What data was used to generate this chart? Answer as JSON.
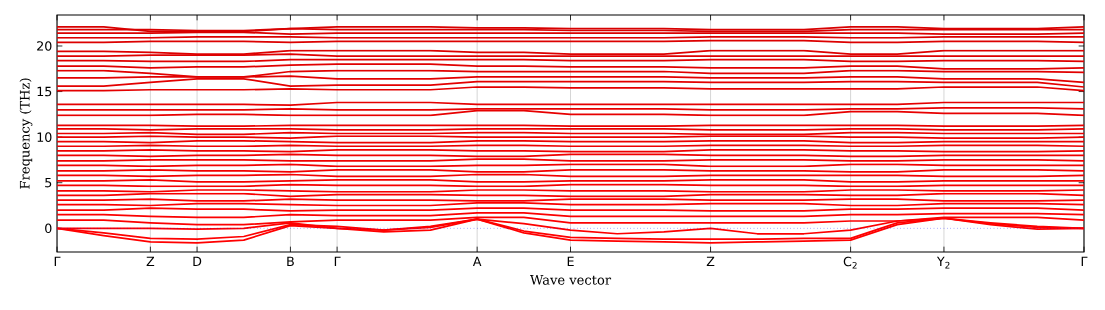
{
  "chart_data": {
    "type": "line",
    "xlabel": "Wave vector",
    "ylabel": "Frequency (THz)",
    "grid": "x",
    "ylim": [
      -2.6,
      23.4
    ],
    "yticks": [
      0,
      5,
      10,
      15,
      20
    ],
    "categories": [
      "Γ",
      null,
      "Z",
      "D",
      null,
      "B",
      "Γ",
      null,
      null,
      "A",
      null,
      "E",
      null,
      null,
      "Z",
      null,
      null,
      "C$_{2}$",
      null,
      "Y$_{2}$",
      null,
      null,
      "Γ"
    ],
    "ref_lines": [
      {
        "axis": "y",
        "value": 0,
        "color": "#0000ff",
        "line_style": "dotted"
      }
    ],
    "series": [
      {
        "color": "#ff0000",
        "values": [
          0,
          -0.8,
          -1.5,
          -1.6,
          -1.3,
          0.3,
          0,
          -0.4,
          -0.2,
          1.0,
          -0.5,
          -1.3,
          -1.4,
          -1.5,
          -1.6,
          -1.5,
          -1.4,
          -1.3,
          0.4,
          1.1,
          0.6,
          0.2,
          0
        ]
      },
      {
        "color": "#fe0000",
        "values": [
          0,
          -0.5,
          -1.1,
          -1.2,
          -0.9,
          0.4,
          0.2,
          -0.2,
          0.1,
          1.0,
          -0.3,
          -1.0,
          -1.1,
          -1.2,
          -1.2,
          -1.2,
          -1.1,
          -1.1,
          0.6,
          1.1,
          0.5,
          0.1,
          0
        ]
      },
      {
        "color": "#fd0000",
        "values": [
          0,
          0,
          0,
          -0.1,
          0,
          0.6,
          0,
          -0.2,
          0.2,
          1.0,
          0.5,
          -0.2,
          -0.6,
          -0.4,
          0,
          -0.6,
          -0.6,
          -0.2,
          0.8,
          1.1,
          0.4,
          -0.1,
          0
        ]
      },
      {
        "color": "#fc0000",
        "values": [
          0.9,
          0.9,
          0.6,
          0.4,
          0.4,
          0.7,
          0.9,
          0.9,
          0.9,
          1.2,
          1.2,
          0.6,
          0.6,
          0.6,
          0.6,
          0.6,
          0.6,
          0.8,
          0.8,
          1.2,
          1.2,
          1.2,
          0.9
        ]
      },
      {
        "color": "#fb0000",
        "values": [
          1.5,
          1.5,
          1.3,
          1.2,
          1.2,
          1.5,
          1.4,
          1.4,
          1.4,
          1.7,
          1.7,
          1.3,
          1.3,
          1.3,
          1.3,
          1.3,
          1.3,
          1.5,
          1.5,
          1.6,
          1.6,
          1.6,
          1.5
        ]
      },
      {
        "color": "#fa0000",
        "values": [
          2.0,
          2.0,
          2.2,
          2.1,
          2.1,
          1.9,
          2.0,
          2.0,
          2.0,
          2.2,
          2.2,
          2.0,
          2.0,
          2.0,
          1.9,
          1.9,
          1.9,
          2.1,
          2.1,
          2.2,
          2.2,
          2.2,
          2.0
        ]
      },
      {
        "color": "#f90000",
        "values": [
          2.6,
          2.6,
          2.5,
          2.7,
          2.7,
          2.6,
          2.5,
          2.5,
          2.5,
          2.8,
          2.8,
          2.6,
          2.6,
          2.6,
          2.7,
          2.7,
          2.7,
          2.5,
          2.5,
          2.7,
          2.7,
          2.7,
          2.6
        ]
      },
      {
        "color": "#f80000",
        "values": [
          3.1,
          3.1,
          3.2,
          3.0,
          3.0,
          3.2,
          3.1,
          3.1,
          3.1,
          3.0,
          3.0,
          3.2,
          3.2,
          3.2,
          3.1,
          3.1,
          3.1,
          3.2,
          3.2,
          3.0,
          3.0,
          3.0,
          3.1
        ]
      },
      {
        "color": "#f70000",
        "values": [
          3.6,
          3.6,
          3.8,
          3.8,
          3.8,
          3.5,
          3.7,
          3.7,
          3.7,
          3.6,
          3.6,
          3.5,
          3.5,
          3.5,
          3.7,
          3.7,
          3.7,
          3.6,
          3.6,
          3.8,
          3.8,
          3.8,
          3.6
        ]
      },
      {
        "color": "#f60000",
        "values": [
          4.1,
          4.1,
          4.0,
          4.2,
          4.2,
          4.1,
          4.0,
          4.0,
          4.0,
          4.2,
          4.2,
          4.1,
          4.1,
          4.1,
          4.0,
          4.0,
          4.0,
          4.2,
          4.2,
          4.1,
          4.1,
          4.1,
          4.2
        ]
      },
      {
        "color": "#f50000",
        "values": [
          4.7,
          4.7,
          4.6,
          4.6,
          4.6,
          4.8,
          4.7,
          4.7,
          4.7,
          4.6,
          4.6,
          4.8,
          4.8,
          4.8,
          4.7,
          4.7,
          4.7,
          4.6,
          4.6,
          4.7,
          4.7,
          4.7,
          4.7
        ]
      },
      {
        "color": "#f40000",
        "values": [
          5.2,
          5.2,
          5.3,
          5.1,
          5.1,
          5.2,
          5.3,
          5.3,
          5.3,
          5.1,
          5.1,
          5.2,
          5.2,
          5.2,
          5.3,
          5.3,
          5.3,
          5.1,
          5.1,
          5.2,
          5.2,
          5.2,
          5.2
        ]
      },
      {
        "color": "#f30000",
        "values": [
          5.8,
          5.8,
          5.7,
          5.8,
          5.8,
          5.9,
          5.7,
          5.7,
          5.7,
          5.9,
          5.9,
          5.7,
          5.7,
          5.7,
          5.8,
          5.8,
          5.8,
          5.8,
          5.8,
          5.7,
          5.7,
          5.7,
          5.8
        ]
      },
      {
        "color": "#f20000",
        "values": [
          6.3,
          6.3,
          6.4,
          6.3,
          6.3,
          6.2,
          6.4,
          6.4,
          6.4,
          6.2,
          6.2,
          6.4,
          6.4,
          6.4,
          6.3,
          6.3,
          6.3,
          6.2,
          6.2,
          6.4,
          6.4,
          6.4,
          6.3
        ]
      },
      {
        "color": "#f10000",
        "values": [
          6.9,
          6.9,
          6.8,
          6.9,
          6.9,
          7.0,
          6.8,
          6.8,
          6.8,
          6.9,
          6.9,
          7.0,
          7.0,
          7.0,
          6.8,
          6.8,
          6.8,
          7.0,
          7.0,
          6.9,
          6.9,
          6.9,
          6.9
        ]
      },
      {
        "color": "#f00000",
        "values": [
          7.4,
          7.4,
          7.5,
          7.5,
          7.5,
          7.4,
          7.4,
          7.4,
          7.4,
          7.6,
          7.6,
          7.4,
          7.4,
          7.4,
          7.5,
          7.5,
          7.5,
          7.4,
          7.4,
          7.5,
          7.5,
          7.5,
          7.4
        ]
      },
      {
        "color": "#ef0000",
        "values": [
          8.0,
          8.0,
          7.9,
          8.0,
          8.0,
          8.1,
          8.0,
          8.0,
          8.0,
          7.9,
          7.9,
          8.1,
          8.1,
          8.1,
          8.0,
          8.0,
          8.0,
          7.9,
          7.9,
          8.0,
          8.0,
          8.0,
          8.0
        ]
      },
      {
        "color": "#ee0000",
        "values": [
          8.5,
          8.5,
          8.6,
          8.5,
          8.5,
          8.4,
          8.6,
          8.6,
          8.6,
          8.5,
          8.5,
          8.4,
          8.4,
          8.4,
          8.6,
          8.6,
          8.6,
          8.5,
          8.5,
          8.4,
          8.4,
          8.4,
          8.5
        ]
      },
      {
        "color": "#ed0000",
        "values": [
          9.0,
          9.0,
          9.1,
          9.0,
          9.0,
          9.1,
          9.0,
          9.0,
          9.0,
          9.1,
          9.1,
          9.0,
          9.0,
          9.0,
          9.1,
          9.1,
          9.1,
          9.0,
          9.0,
          9.1,
          9.1,
          9.1,
          9.0
        ]
      },
      {
        "color": "#ec0000",
        "values": [
          9.5,
          9.5,
          9.4,
          9.6,
          9.6,
          9.5,
          9.4,
          9.4,
          9.4,
          9.6,
          9.6,
          9.5,
          9.5,
          9.5,
          9.6,
          9.6,
          9.6,
          9.4,
          9.4,
          9.5,
          9.5,
          9.5,
          9.5
        ]
      },
      {
        "color": "#eb0000",
        "values": [
          10.0,
          10.0,
          10.1,
          10.0,
          10.0,
          9.9,
          10.1,
          10.1,
          10.1,
          10.0,
          10.0,
          10.0,
          10.0,
          10.0,
          10.1,
          10.1,
          10.1,
          10.0,
          10.0,
          9.9,
          9.9,
          9.9,
          10.0
        ]
      },
      {
        "color": "#ea0000",
        "values": [
          10.4,
          10.4,
          10.5,
          10.3,
          10.3,
          10.5,
          10.4,
          10.4,
          10.4,
          10.5,
          10.5,
          10.4,
          10.4,
          10.4,
          10.3,
          10.3,
          10.3,
          10.5,
          10.5,
          10.4,
          10.4,
          10.4,
          10.4
        ]
      },
      {
        "color": "#e90000",
        "values": [
          10.9,
          10.9,
          10.8,
          10.9,
          10.9,
          10.9,
          10.8,
          10.8,
          10.8,
          10.9,
          10.9,
          10.9,
          10.9,
          10.9,
          10.8,
          10.8,
          10.8,
          10.9,
          10.9,
          10.8,
          10.8,
          10.8,
          10.9
        ]
      },
      {
        "color": "#e80000",
        "values": [
          11.3,
          11.3,
          11.3,
          11.2,
          11.2,
          11.3,
          11.3,
          11.3,
          11.3,
          11.3,
          11.3,
          11.2,
          11.2,
          11.2,
          11.3,
          11.3,
          11.3,
          11.3,
          11.3,
          11.2,
          11.2,
          11.2,
          11.3
        ]
      },
      {
        "color": "#e70000",
        "values": [
          12.4,
          12.4,
          12.4,
          12.5,
          12.5,
          12.4,
          12.4,
          12.4,
          12.4,
          12.9,
          12.9,
          12.5,
          12.5,
          12.5,
          12.4,
          12.4,
          12.4,
          12.8,
          12.8,
          12.6,
          12.6,
          12.6,
          12.4
        ]
      },
      {
        "color": "#e60000",
        "values": [
          13.0,
          13.0,
          13.0,
          13.0,
          13.0,
          13.1,
          13.0,
          13.0,
          13.0,
          13.1,
          13.1,
          13.1,
          13.1,
          13.1,
          13.0,
          13.0,
          13.0,
          13.1,
          13.1,
          13.2,
          13.2,
          13.2,
          13.1
        ]
      },
      {
        "color": "#e50000",
        "values": [
          13.6,
          13.6,
          13.6,
          13.6,
          13.6,
          13.5,
          13.8,
          13.8,
          13.8,
          13.6,
          13.6,
          13.6,
          13.6,
          13.6,
          13.6,
          13.6,
          13.6,
          13.6,
          13.6,
          13.8,
          13.8,
          13.8,
          13.8
        ]
      },
      {
        "color": "#e40000",
        "values": [
          15.1,
          15.1,
          15.2,
          15.2,
          15.2,
          15.3,
          15.2,
          15.2,
          15.2,
          15.5,
          15.5,
          15.4,
          15.4,
          15.4,
          15.3,
          15.3,
          15.3,
          15.3,
          15.3,
          15.5,
          15.5,
          15.5,
          15.1
        ]
      },
      {
        "color": "#e30000",
        "values": [
          15.6,
          15.6,
          16.0,
          16.4,
          16.4,
          15.6,
          15.7,
          15.7,
          15.7,
          16.1,
          16.1,
          16.1,
          16.1,
          16.1,
          16.0,
          16.0,
          16.0,
          16.1,
          16.1,
          16.0,
          16.0,
          16.0,
          15.5
        ]
      },
      {
        "color": "#e20000",
        "values": [
          16.5,
          16.5,
          16.6,
          16.6,
          16.6,
          16.7,
          16.4,
          16.4,
          16.4,
          16.6,
          16.6,
          16.6,
          16.6,
          16.6,
          16.5,
          16.5,
          16.5,
          16.6,
          16.6,
          16.4,
          16.4,
          16.4,
          16.0
        ]
      },
      {
        "color": "#e10000",
        "values": [
          17.3,
          17.3,
          17.0,
          16.6,
          16.6,
          17.2,
          17.3,
          17.3,
          17.3,
          17.2,
          17.2,
          17.2,
          17.2,
          17.2,
          17.0,
          17.0,
          17.0,
          17.3,
          17.3,
          17.2,
          17.2,
          17.2,
          17.1
        ]
      },
      {
        "color": "#e00000",
        "values": [
          17.8,
          17.8,
          17.6,
          17.7,
          17.7,
          17.9,
          18.0,
          18.0,
          18.0,
          17.8,
          17.8,
          17.7,
          17.7,
          17.7,
          17.6,
          17.6,
          17.6,
          17.8,
          17.8,
          17.5,
          17.5,
          17.5,
          17.6
        ]
      },
      {
        "color": "#df0000",
        "values": [
          18.4,
          18.4,
          18.3,
          18.3,
          18.3,
          18.5,
          18.5,
          18.5,
          18.5,
          18.5,
          18.5,
          18.4,
          18.4,
          18.4,
          18.5,
          18.5,
          18.5,
          18.3,
          18.3,
          18.4,
          18.4,
          18.4,
          18.3
        ]
      },
      {
        "color": "#de0000",
        "values": [
          18.9,
          18.9,
          19.0,
          19.0,
          19.0,
          19.1,
          18.9,
          18.9,
          18.9,
          18.9,
          18.9,
          18.9,
          18.9,
          18.9,
          18.9,
          18.9,
          18.9,
          18.9,
          18.9,
          18.9,
          18.9,
          18.9,
          18.9
        ]
      },
      {
        "color": "#dd0000",
        "values": [
          19.4,
          19.4,
          19.3,
          19.1,
          19.1,
          19.5,
          19.5,
          19.5,
          19.5,
          19.3,
          19.3,
          19.1,
          19.1,
          19.1,
          19.5,
          19.5,
          19.5,
          19.1,
          19.1,
          19.5,
          19.5,
          19.5,
          19.5
        ]
      },
      {
        "color": "#dc0000",
        "values": [
          20.4,
          20.4,
          20.5,
          20.5,
          20.5,
          20.4,
          20.5,
          20.5,
          20.5,
          20.5,
          20.5,
          20.5,
          20.5,
          20.5,
          20.6,
          20.6,
          20.6,
          20.4,
          20.4,
          20.5,
          20.5,
          20.5,
          20.4
        ]
      },
      {
        "color": "#db0000",
        "values": [
          20.9,
          20.9,
          20.9,
          21.0,
          21.0,
          21.0,
          20.9,
          20.9,
          20.9,
          20.9,
          20.9,
          20.9,
          20.9,
          20.9,
          21.0,
          21.0,
          21.0,
          20.9,
          20.9,
          21.0,
          21.0,
          21.0,
          21.0
        ]
      },
      {
        "color": "#da0000",
        "values": [
          21.4,
          21.4,
          21.4,
          21.5,
          21.5,
          21.3,
          21.4,
          21.4,
          21.4,
          21.4,
          21.4,
          21.4,
          21.4,
          21.4,
          21.4,
          21.4,
          21.4,
          21.4,
          21.4,
          21.3,
          21.3,
          21.3,
          21.4
        ]
      },
      {
        "color": "#d90000",
        "values": [
          21.8,
          21.8,
          21.8,
          21.7,
          21.7,
          21.9,
          21.8,
          21.8,
          21.8,
          21.8,
          21.8,
          21.7,
          21.7,
          21.7,
          21.6,
          21.6,
          21.6,
          21.8,
          21.8,
          21.8,
          21.8,
          21.8,
          21.8
        ]
      },
      {
        "color": "#d80000",
        "values": [
          22.1,
          22.1,
          21.6,
          21.6,
          21.6,
          21.9,
          22.1,
          22.1,
          22.1,
          22.0,
          22.0,
          21.9,
          21.9,
          21.9,
          21.8,
          21.8,
          21.8,
          22.1,
          22.1,
          21.9,
          21.9,
          21.9,
          22.1
        ]
      }
    ]
  }
}
